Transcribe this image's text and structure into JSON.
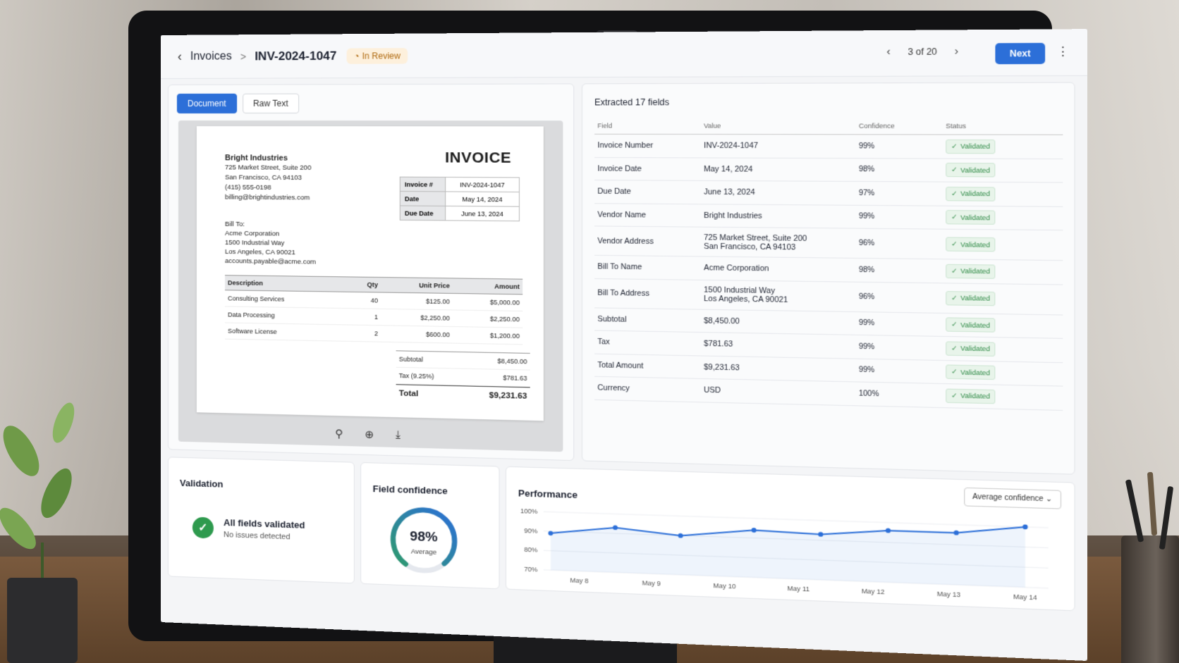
{
  "header": {
    "back_icon": "chevron-left-icon",
    "breadcrumb_root": "Invoices",
    "breadcrumb_sep": ">",
    "doc_id": "INV-2024-1047",
    "status_badge": "In Review",
    "pager_text": "3 of 20",
    "next_label": "Next",
    "more_icon": "⋮"
  },
  "tabs": [
    {
      "label": "Document"
    },
    {
      "label": "Raw Text"
    }
  ],
  "invoice": {
    "vendor_name": "Bright Industries",
    "vendor_addr1": "725 Market Street, Suite 200",
    "vendor_addr2": "San Francisco, CA 94103",
    "vendor_phone": "(415) 555-0198",
    "vendor_email": "billing@brightindustries.com",
    "title": "INVOICE",
    "meta": [
      {
        "k": "Invoice #",
        "v": "INV-2024-1047"
      },
      {
        "k": "Date",
        "v": "May 14, 2024"
      },
      {
        "k": "Due Date",
        "v": "June 13, 2024"
      }
    ],
    "bill_to_label": "Bill To:",
    "bill_to_name": "Acme Corporation",
    "bill_to_addr1": "1500 Industrial Way",
    "bill_to_addr2": "Los Angeles, CA 90021",
    "bill_to_email": "accounts.payable@acme.com",
    "columns": [
      "Description",
      "Qty",
      "Unit Price",
      "Amount"
    ],
    "items": [
      {
        "desc": "Consulting Services",
        "qty": "40",
        "price": "$125.00",
        "amount": "$5,000.00"
      },
      {
        "desc": "Data Processing",
        "qty": "1",
        "price": "$2,250.00",
        "amount": "$2,250.00"
      },
      {
        "desc": "Software License",
        "qty": "2",
        "price": "$600.00",
        "amount": "$1,200.00"
      }
    ],
    "subtotal_label": "Subtotal",
    "subtotal": "$8,450.00",
    "tax_label": "Tax (9.25%)",
    "tax": "$781.63",
    "total_label": "Total",
    "total": "$9,231.63"
  },
  "extraction": {
    "heading": "Extracted 17 fields",
    "columns": [
      "Field",
      "Value",
      "Confidence",
      "Status"
    ],
    "rows": [
      {
        "field": "Invoice Number",
        "value": "INV-2024-1047",
        "conf": "99%",
        "status": "Validated"
      },
      {
        "field": "Invoice Date",
        "value": "May 14, 2024",
        "conf": "98%",
        "status": "Validated"
      },
      {
        "field": "Due Date",
        "value": "June 13, 2024",
        "conf": "97%",
        "status": "Validated"
      },
      {
        "field": "Vendor Name",
        "value": "Bright Industries",
        "conf": "99%",
        "status": "Validated"
      },
      {
        "field": "Vendor Address",
        "value": "725 Market Street, Suite 200",
        "value2": "San Francisco, CA 94103",
        "conf": "96%",
        "status": "Validated"
      },
      {
        "field": "Bill To Name",
        "value": "Acme Corporation",
        "conf": "98%",
        "status": "Validated"
      },
      {
        "field": "Bill To Address",
        "value": "1500 Industrial Way",
        "value2": "Los Angeles, CA 90021",
        "conf": "96%",
        "status": "Validated"
      },
      {
        "field": "Subtotal",
        "value": "$8,450.00",
        "conf": "99%",
        "status": "Validated"
      },
      {
        "field": "Tax",
        "value": "$781.63",
        "conf": "99%",
        "status": "Validated"
      },
      {
        "field": "Total Amount",
        "value": "$9,231.63",
        "conf": "99%",
        "status": "Validated"
      },
      {
        "field": "Currency",
        "value": "USD",
        "conf": "100%",
        "status": "Validated"
      }
    ]
  },
  "validation": {
    "title": "Validation",
    "status": "All fields validated",
    "sub": "No issues detected"
  },
  "confidence": {
    "title": "Field confidence",
    "value": "98%",
    "fraction": 0.98,
    "label": "Average"
  },
  "performance": {
    "title": "Performance",
    "dropdown": "Average confidence"
  },
  "chart_data": {
    "type": "area",
    "categories": [
      "May 8",
      "May 9",
      "May 10",
      "May 11",
      "May 12",
      "May 13",
      "May 14"
    ],
    "x_points": [
      7.6,
      8.5,
      9.4,
      10.4,
      11.3,
      12.2,
      13.1,
      14.0
    ],
    "y_values": [
      89,
      93,
      90,
      94,
      93,
      96,
      96,
      100
    ],
    "yticks": [
      "100%",
      "90%",
      "80%",
      "70%"
    ],
    "ylim": [
      70,
      100
    ],
    "color": "#2c6fd8"
  },
  "colors": {
    "accent": "#2c6fd8",
    "success": "#2e9a4e",
    "warning": "#b06b12"
  }
}
